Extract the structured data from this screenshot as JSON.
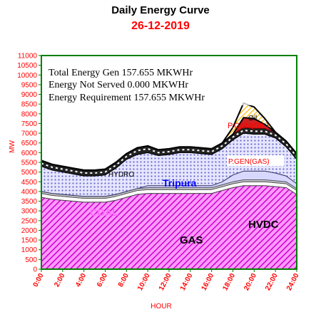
{
  "chart_data": {
    "type": "area",
    "title": "Daily Energy Curve",
    "subtitle": "26-12-2019",
    "xlabel": "HOUR",
    "ylabel": "MW",
    "ylim": [
      0,
      11000
    ],
    "xlim": [
      0,
      24
    ],
    "y_ticks": [
      0,
      500,
      1000,
      1500,
      2000,
      2500,
      3000,
      3500,
      4000,
      4500,
      5000,
      5500,
      6000,
      6500,
      7000,
      7500,
      8000,
      8500,
      9000,
      9500,
      10000,
      10500,
      11000
    ],
    "x_ticks": [
      "0:00",
      "2:00",
      "4:00",
      "6:00",
      "8:00",
      "10:00",
      "12:00",
      "14:00",
      "16:00",
      "18:00",
      "20:00",
      "22:00",
      "24:00"
    ],
    "x": [
      0,
      1,
      2,
      3,
      4,
      5,
      6,
      7,
      8,
      9,
      10,
      11,
      12,
      13,
      14,
      15,
      16,
      17,
      18,
      19,
      20,
      21,
      22,
      23,
      24
    ],
    "series": [
      {
        "name": "COAL",
        "values": [
          3700,
          3600,
          3550,
          3500,
          3450,
          3450,
          3450,
          3550,
          3700,
          3850,
          3900,
          3900,
          3900,
          3900,
          3900,
          3900,
          3900,
          4050,
          4200,
          4300,
          4300,
          4300,
          4250,
          4200,
          3850
        ]
      },
      {
        "name": "GAS",
        "values": [
          200,
          200,
          200,
          200,
          200,
          200,
          200,
          200,
          200,
          200,
          200,
          200,
          200,
          200,
          200,
          200,
          200,
          200,
          200,
          200,
          200,
          200,
          200,
          200,
          200
        ]
      },
      {
        "name": "HVDC",
        "values": [
          100,
          100,
          100,
          100,
          100,
          100,
          100,
          100,
          100,
          100,
          100,
          100,
          100,
          100,
          100,
          100,
          100,
          100,
          100,
          100,
          100,
          100,
          100,
          100,
          100
        ]
      },
      {
        "name": "P.GEN(GAS)",
        "values": [
          0,
          0,
          0,
          0,
          0,
          0,
          0,
          0,
          0,
          0,
          100,
          100,
          100,
          100,
          100,
          100,
          100,
          150,
          350,
          450,
          450,
          450,
          400,
          300,
          250
        ]
      },
      {
        "name": "Tripura",
        "values": [
          1300,
          1200,
          1150,
          1100,
          1050,
          1050,
          1100,
          1350,
          1650,
          1750,
          1700,
          1550,
          1600,
          1700,
          1700,
          1650,
          1600,
          1700,
          1800,
          1950,
          1900,
          1900,
          1800,
          1500,
          1250
        ]
      },
      {
        "name": "HYDRO",
        "values": [
          300,
          300,
          300,
          300,
          300,
          300,
          300,
          300,
          300,
          350,
          350,
          300,
          300,
          300,
          300,
          300,
          300,
          300,
          300,
          300,
          300,
          300,
          300,
          300,
          300
        ]
      },
      {
        "name": "P.GEN(OIL)",
        "values": [
          0,
          0,
          0,
          0,
          0,
          0,
          0,
          0,
          0,
          0,
          0,
          0,
          0,
          0,
          0,
          0,
          0,
          0,
          0,
          500,
          500,
          200,
          0,
          0,
          0
        ]
      },
      {
        "name": "Oil",
        "values": [
          0,
          0,
          0,
          0,
          0,
          0,
          0,
          0,
          0,
          0,
          0,
          0,
          0,
          0,
          0,
          0,
          0,
          0,
          350,
          750,
          600,
          300,
          0,
          0,
          0
        ]
      }
    ],
    "colors": {
      "coal": "#cc00cc",
      "gas": "#ffffff",
      "hvdc": "#c0c0c0",
      "pgen_gas": "#ccccff",
      "tripura": "#9999ff",
      "hydro": "#000000",
      "pgen_oil": "#cc0000",
      "oil": "#ffcc00",
      "frame": "#008000",
      "axis_text": "#ff0000",
      "tripura_label": "#0000ff",
      "coal_label": "#ff66ff"
    },
    "annotations": {
      "total": "Total Energy Gen 157.655 MKWHr",
      "not_served": "Energy Not Served  0.000 MKWHr",
      "requirement": "Energy Requirement    157.655 MKWHr"
    },
    "grid": false
  }
}
